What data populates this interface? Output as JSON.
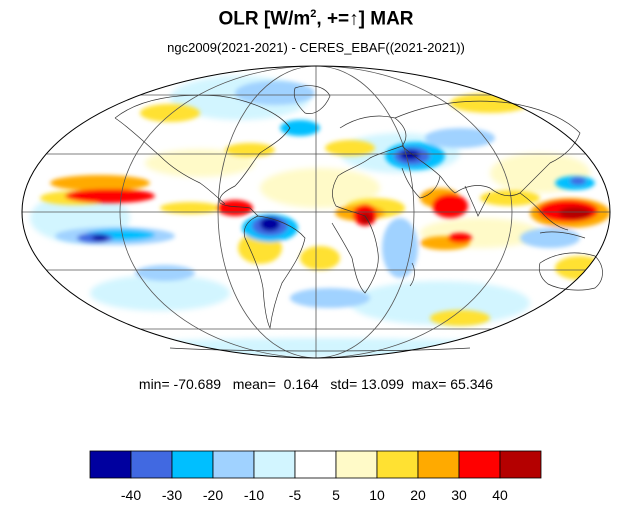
{
  "title": {
    "main": "OLR [W/m",
    "sup": "2",
    "rest": ", +=↑] MAR"
  },
  "subtitle": "ngc2009(2021-2021) - CERES_EBAF((2021-2021))",
  "stats": {
    "min_label": "min=",
    "min": "-70.689",
    "mean_label": "mean=",
    "mean": "0.164",
    "std_label": "std=",
    "std": "13.099",
    "max_label": "max=",
    "max": "65.346"
  },
  "colorbar": {
    "colors": [
      "#00009f",
      "#4169e1",
      "#00bfff",
      "#a0d2ff",
      "#d2f5ff",
      "#ffffff",
      "#fffac8",
      "#ffe132",
      "#ffaa00",
      "#ff0000",
      "#b40000"
    ],
    "labels": [
      "-40",
      "-30",
      "-20",
      "-10",
      "-5",
      "5",
      "10",
      "20",
      "30",
      "40"
    ]
  },
  "map": {
    "projection": "Mollweide",
    "land_color": "none",
    "ocean_color": "#ffffff",
    "coast_color": "#333333",
    "grid_color": "#555555"
  }
}
